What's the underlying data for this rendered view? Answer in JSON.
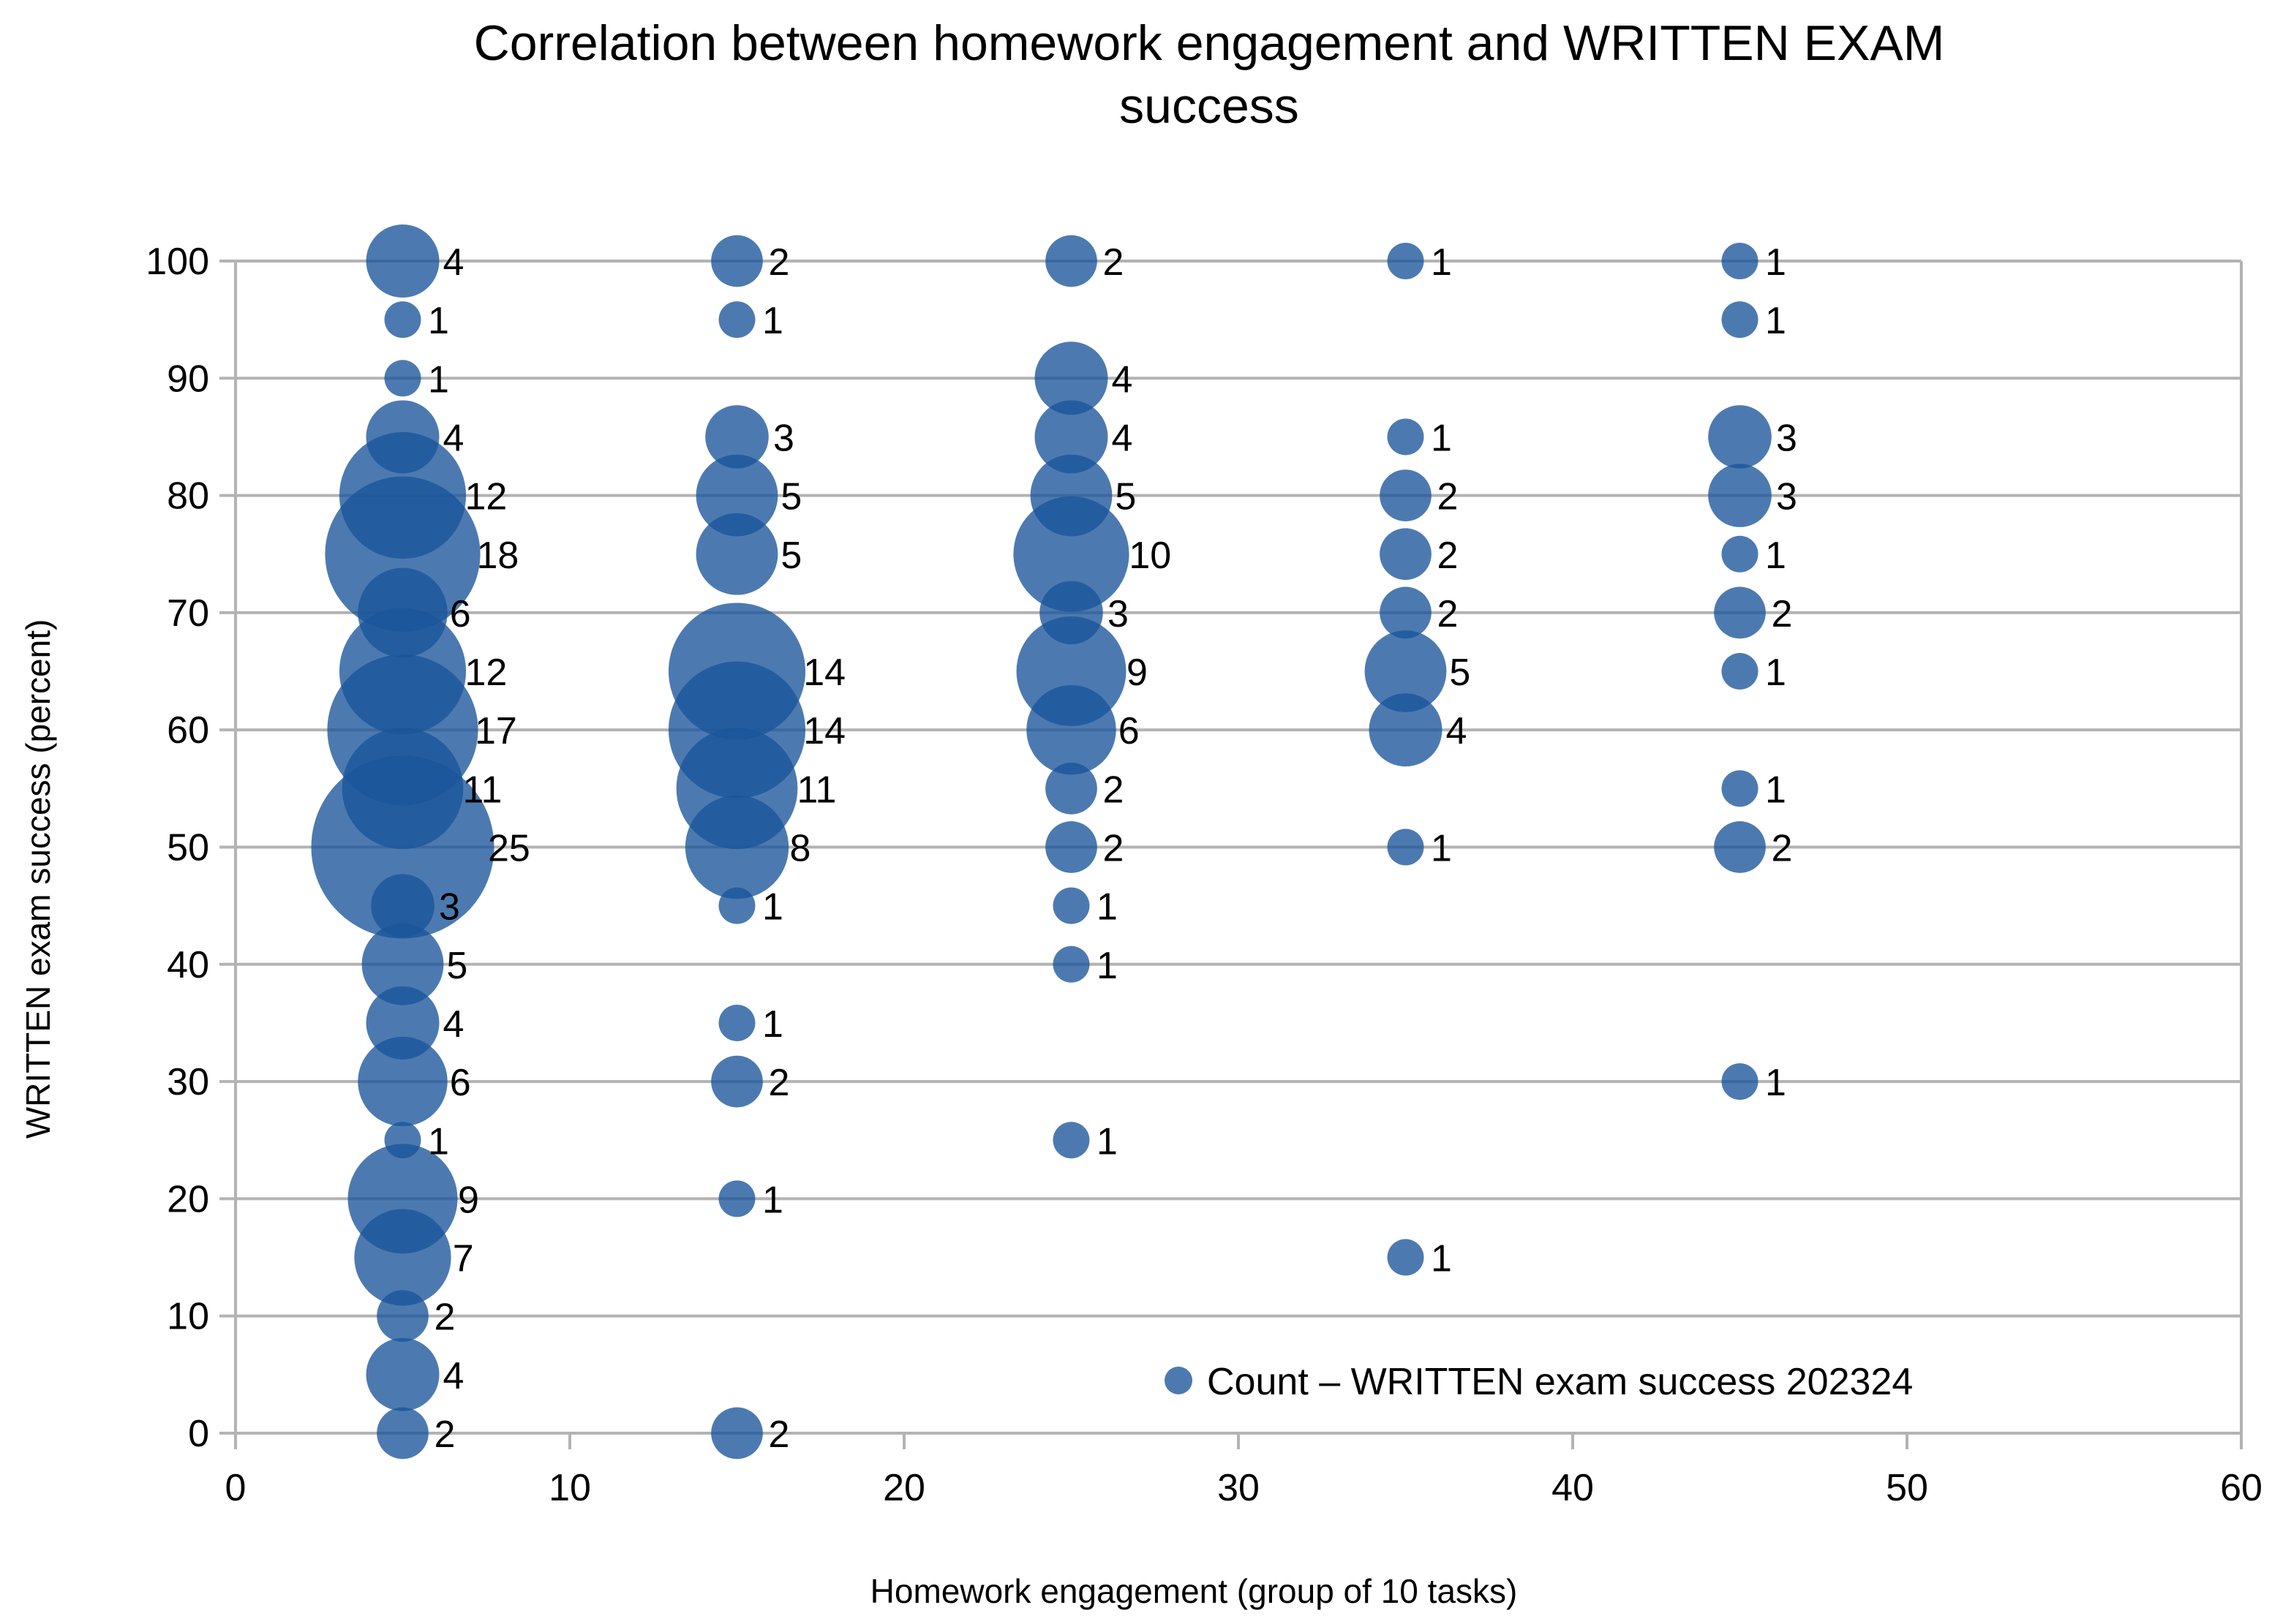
{
  "chart_data": {
    "type": "scatter",
    "subtype": "bubble",
    "title": [
      "Correlation between homework engagement and WRITTEN EXAM",
      "success"
    ],
    "xlabel": "Homework engagement (group of 10 tasks)",
    "ylabel": "WRITTEN exam success (percent)",
    "xlim": [
      0,
      60
    ],
    "ylim": [
      0,
      100
    ],
    "xticks": [
      0,
      10,
      20,
      30,
      40,
      50,
      60
    ],
    "yticks": [
      0,
      10,
      20,
      30,
      40,
      50,
      60,
      70,
      80,
      90,
      100
    ],
    "grid": true,
    "legend_position": "bottom-right",
    "series": [
      {
        "name": "Count – WRITTEN exam success 202324",
        "color": "#19559a",
        "points": [
          {
            "x": 5,
            "y": 100,
            "count": 4
          },
          {
            "x": 5,
            "y": 95,
            "count": 1
          },
          {
            "x": 5,
            "y": 90,
            "count": 1
          },
          {
            "x": 5,
            "y": 85,
            "count": 4
          },
          {
            "x": 5,
            "y": 80,
            "count": 12
          },
          {
            "x": 5,
            "y": 75,
            "count": 18
          },
          {
            "x": 5,
            "y": 70,
            "count": 6
          },
          {
            "x": 5,
            "y": 65,
            "count": 12
          },
          {
            "x": 5,
            "y": 60,
            "count": 17
          },
          {
            "x": 5,
            "y": 55,
            "count": 11
          },
          {
            "x": 5,
            "y": 50,
            "count": 25
          },
          {
            "x": 5,
            "y": 45,
            "count": 3
          },
          {
            "x": 5,
            "y": 40,
            "count": 5
          },
          {
            "x": 5,
            "y": 35,
            "count": 4
          },
          {
            "x": 5,
            "y": 30,
            "count": 6
          },
          {
            "x": 5,
            "y": 25,
            "count": 1
          },
          {
            "x": 5,
            "y": 20,
            "count": 9
          },
          {
            "x": 5,
            "y": 15,
            "count": 7
          },
          {
            "x": 5,
            "y": 10,
            "count": 2
          },
          {
            "x": 5,
            "y": 5,
            "count": 4
          },
          {
            "x": 5,
            "y": 0,
            "count": 2
          },
          {
            "x": 15,
            "y": 100,
            "count": 2
          },
          {
            "x": 15,
            "y": 95,
            "count": 1
          },
          {
            "x": 15,
            "y": 85,
            "count": 3
          },
          {
            "x": 15,
            "y": 80,
            "count": 5
          },
          {
            "x": 15,
            "y": 75,
            "count": 5
          },
          {
            "x": 15,
            "y": 65,
            "count": 14
          },
          {
            "x": 15,
            "y": 60,
            "count": 14
          },
          {
            "x": 15,
            "y": 55,
            "count": 11
          },
          {
            "x": 15,
            "y": 50,
            "count": 8
          },
          {
            "x": 15,
            "y": 45,
            "count": 1
          },
          {
            "x": 15,
            "y": 35,
            "count": 1
          },
          {
            "x": 15,
            "y": 30,
            "count": 2
          },
          {
            "x": 15,
            "y": 20,
            "count": 1
          },
          {
            "x": 15,
            "y": 0,
            "count": 2
          },
          {
            "x": 25,
            "y": 100,
            "count": 2
          },
          {
            "x": 25,
            "y": 90,
            "count": 4
          },
          {
            "x": 25,
            "y": 85,
            "count": 4
          },
          {
            "x": 25,
            "y": 80,
            "count": 5
          },
          {
            "x": 25,
            "y": 75,
            "count": 10
          },
          {
            "x": 25,
            "y": 70,
            "count": 3
          },
          {
            "x": 25,
            "y": 65,
            "count": 9
          },
          {
            "x": 25,
            "y": 60,
            "count": 6
          },
          {
            "x": 25,
            "y": 55,
            "count": 2
          },
          {
            "x": 25,
            "y": 50,
            "count": 2
          },
          {
            "x": 25,
            "y": 45,
            "count": 1
          },
          {
            "x": 25,
            "y": 40,
            "count": 1
          },
          {
            "x": 25,
            "y": 25,
            "count": 1
          },
          {
            "x": 35,
            "y": 100,
            "count": 1
          },
          {
            "x": 35,
            "y": 85,
            "count": 1
          },
          {
            "x": 35,
            "y": 80,
            "count": 2
          },
          {
            "x": 35,
            "y": 75,
            "count": 2
          },
          {
            "x": 35,
            "y": 70,
            "count": 2
          },
          {
            "x": 35,
            "y": 65,
            "count": 5
          },
          {
            "x": 35,
            "y": 60,
            "count": 4
          },
          {
            "x": 35,
            "y": 50,
            "count": 1
          },
          {
            "x": 35,
            "y": 15,
            "count": 1
          },
          {
            "x": 45,
            "y": 100,
            "count": 1
          },
          {
            "x": 45,
            "y": 95,
            "count": 1
          },
          {
            "x": 45,
            "y": 85,
            "count": 3
          },
          {
            "x": 45,
            "y": 80,
            "count": 3
          },
          {
            "x": 45,
            "y": 75,
            "count": 1
          },
          {
            "x": 45,
            "y": 70,
            "count": 2
          },
          {
            "x": 45,
            "y": 65,
            "count": 1
          },
          {
            "x": 45,
            "y": 55,
            "count": 1
          },
          {
            "x": 45,
            "y": 50,
            "count": 2
          },
          {
            "x": 45,
            "y": 30,
            "count": 1
          }
        ]
      }
    ]
  }
}
